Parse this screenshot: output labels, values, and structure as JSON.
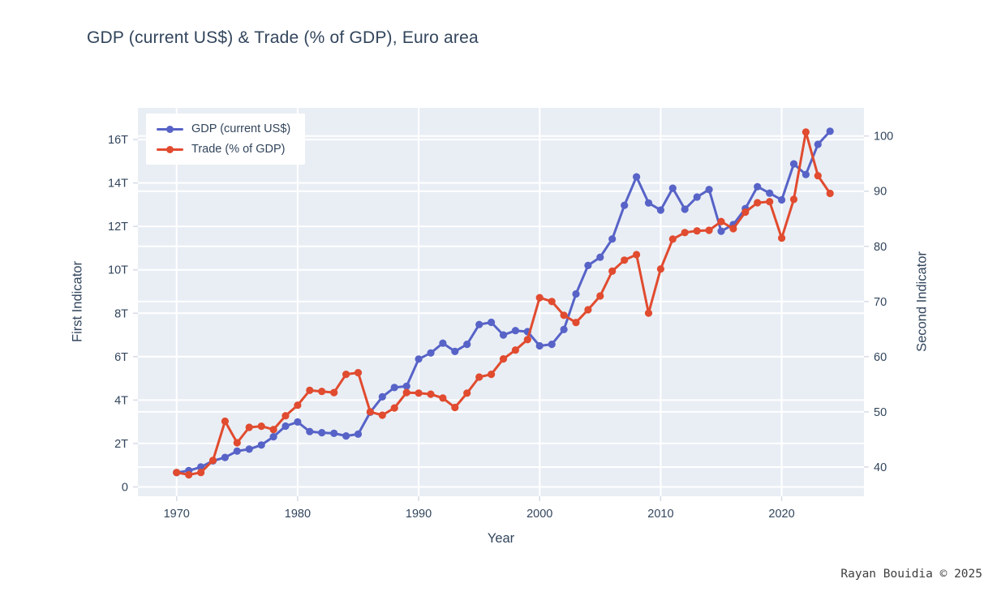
{
  "title": "GDP (current US$) & Trade (% of GDP), Euro area",
  "footer_credit": "Rayan Bouidia © 2025",
  "colors": {
    "figure_background": "#ffffff",
    "plot_background": "#e9eef5",
    "gridline": "#ffffff",
    "tick_mark": "#d6dce6",
    "text": "#32455c",
    "gdp_series": "#5763c7",
    "trade_series": "#e14b2f"
  },
  "chart_data": {
    "type": "line",
    "title": "GDP (current US$) & Trade (% of GDP), Euro area",
    "xlabel": "Year",
    "ylabel_left": "First Indicator",
    "ylabel_right": "Second Indicator",
    "grid": "on, white, both y-axes and decade x-ticks",
    "legend_position": "top-left inside plot",
    "x": [
      1970,
      1971,
      1972,
      1973,
      1974,
      1975,
      1976,
      1977,
      1978,
      1979,
      1980,
      1981,
      1982,
      1983,
      1984,
      1985,
      1986,
      1987,
      1988,
      1989,
      1990,
      1991,
      1992,
      1993,
      1994,
      1995,
      1996,
      1997,
      1998,
      1999,
      2000,
      2001,
      2002,
      2003,
      2004,
      2005,
      2006,
      2007,
      2008,
      2009,
      2010,
      2011,
      2012,
      2013,
      2014,
      2015,
      2016,
      2017,
      2018,
      2019,
      2020,
      2021,
      2022,
      2023,
      2024
    ],
    "series": [
      {
        "id": "gdp",
        "name": "GDP (current US$)",
        "axis": "left",
        "units": "trillion US$",
        "color": "#5763c7",
        "values": [
          0.66,
          0.75,
          0.92,
          1.2,
          1.36,
          1.65,
          1.74,
          1.93,
          2.31,
          2.8,
          2.99,
          2.55,
          2.5,
          2.47,
          2.35,
          2.43,
          3.44,
          4.15,
          4.58,
          4.64,
          5.89,
          6.17,
          6.62,
          6.24,
          6.57,
          7.48,
          7.58,
          7.0,
          7.2,
          7.15,
          6.5,
          6.57,
          7.25,
          8.89,
          10.2,
          10.58,
          11.42,
          12.97,
          14.28,
          13.08,
          12.75,
          13.76,
          12.79,
          13.35,
          13.7,
          11.78,
          12.08,
          12.82,
          13.83,
          13.53,
          13.22,
          14.88,
          14.39,
          15.78,
          16.38
        ]
      },
      {
        "id": "trade",
        "name": "Trade (% of GDP)",
        "axis": "right",
        "units": "% of GDP",
        "color": "#e14b2f",
        "values": [
          39.0,
          38.6,
          39.0,
          41.2,
          48.3,
          44.4,
          47.2,
          47.4,
          46.8,
          49.3,
          51.2,
          53.9,
          53.7,
          53.5,
          56.8,
          57.1,
          50.0,
          49.4,
          50.7,
          53.5,
          53.4,
          53.2,
          52.5,
          50.8,
          53.4,
          56.3,
          56.8,
          59.6,
          61.2,
          63.1,
          70.7,
          70.0,
          67.5,
          66.2,
          68.5,
          71.0,
          75.5,
          77.5,
          78.5,
          67.9,
          75.9,
          81.3,
          82.5,
          82.8,
          82.9,
          84.5,
          83.2,
          86.2,
          87.9,
          88.1,
          81.5,
          88.5,
          100.7,
          92.8,
          89.6
        ]
      }
    ],
    "left_axis": {
      "tick_labels": [
        "0",
        "2T",
        "4T",
        "6T",
        "8T",
        "10T",
        "12T",
        "14T",
        "16T"
      ],
      "tick_values": [
        0,
        2,
        4,
        6,
        8,
        10,
        12,
        14,
        16
      ],
      "range": [
        -0.43,
        17.46
      ]
    },
    "right_axis": {
      "tick_labels": [
        "40",
        "50",
        "60",
        "70",
        "80",
        "90",
        "100"
      ],
      "tick_values": [
        40,
        50,
        60,
        70,
        80,
        90,
        100
      ],
      "range": [
        34.7,
        105.1
      ]
    },
    "x_axis": {
      "tick_labels": [
        "1970",
        "1980",
        "1990",
        "2000",
        "2010",
        "2020"
      ],
      "tick_values": [
        1970,
        1980,
        1990,
        2000,
        2010,
        2020
      ],
      "range": [
        1966.8,
        2026.8
      ]
    }
  }
}
